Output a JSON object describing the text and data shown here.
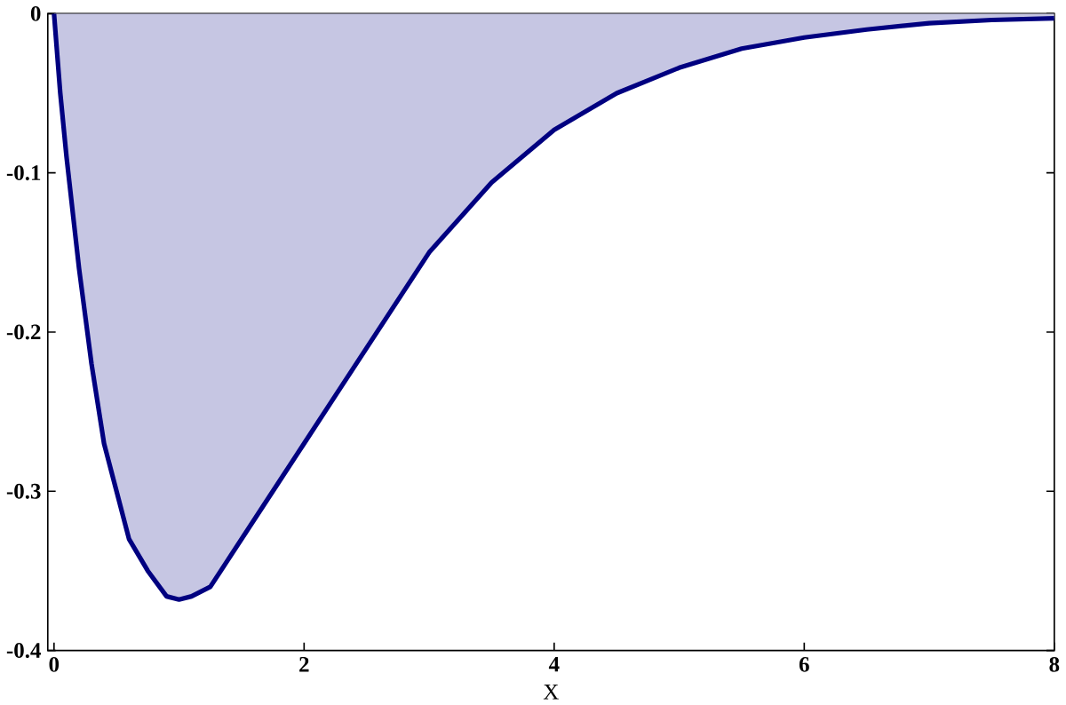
{
  "chart_data": {
    "type": "area",
    "xlabel": "X",
    "x": [
      0,
      0.05,
      0.1,
      0.2,
      0.3,
      0.4,
      0.5,
      0.6,
      0.75,
      0.9,
      1,
      1.1,
      1.25,
      1.5,
      1.75,
      2,
      2.25,
      2.5,
      3,
      3.5,
      4,
      4.5,
      5,
      5.5,
      6,
      6.5,
      7,
      7.5,
      8
    ],
    "series": [
      {
        "color": "#000080",
        "values": [
          0,
          -0.05,
          -0.09,
          -0.16,
          -0.22,
          -0.27,
          -0.3,
          -0.33,
          -0.35,
          -0.366,
          -0.368,
          -0.366,
          -0.36,
          -0.33,
          -0.3,
          -0.27,
          -0.24,
          -0.21,
          -0.15,
          -0.106,
          -0.073,
          -0.05,
          -0.034,
          -0.022,
          -0.015,
          -0.01,
          -0.006,
          -0.004,
          -0.003
        ]
      }
    ],
    "xlim": [
      -0.05,
      8
    ],
    "ylim": [
      -0.4,
      0
    ],
    "xticks": [
      0,
      2,
      4,
      6,
      8
    ],
    "yticks": [
      0,
      -0.1,
      -0.2,
      -0.3,
      -0.4
    ]
  }
}
